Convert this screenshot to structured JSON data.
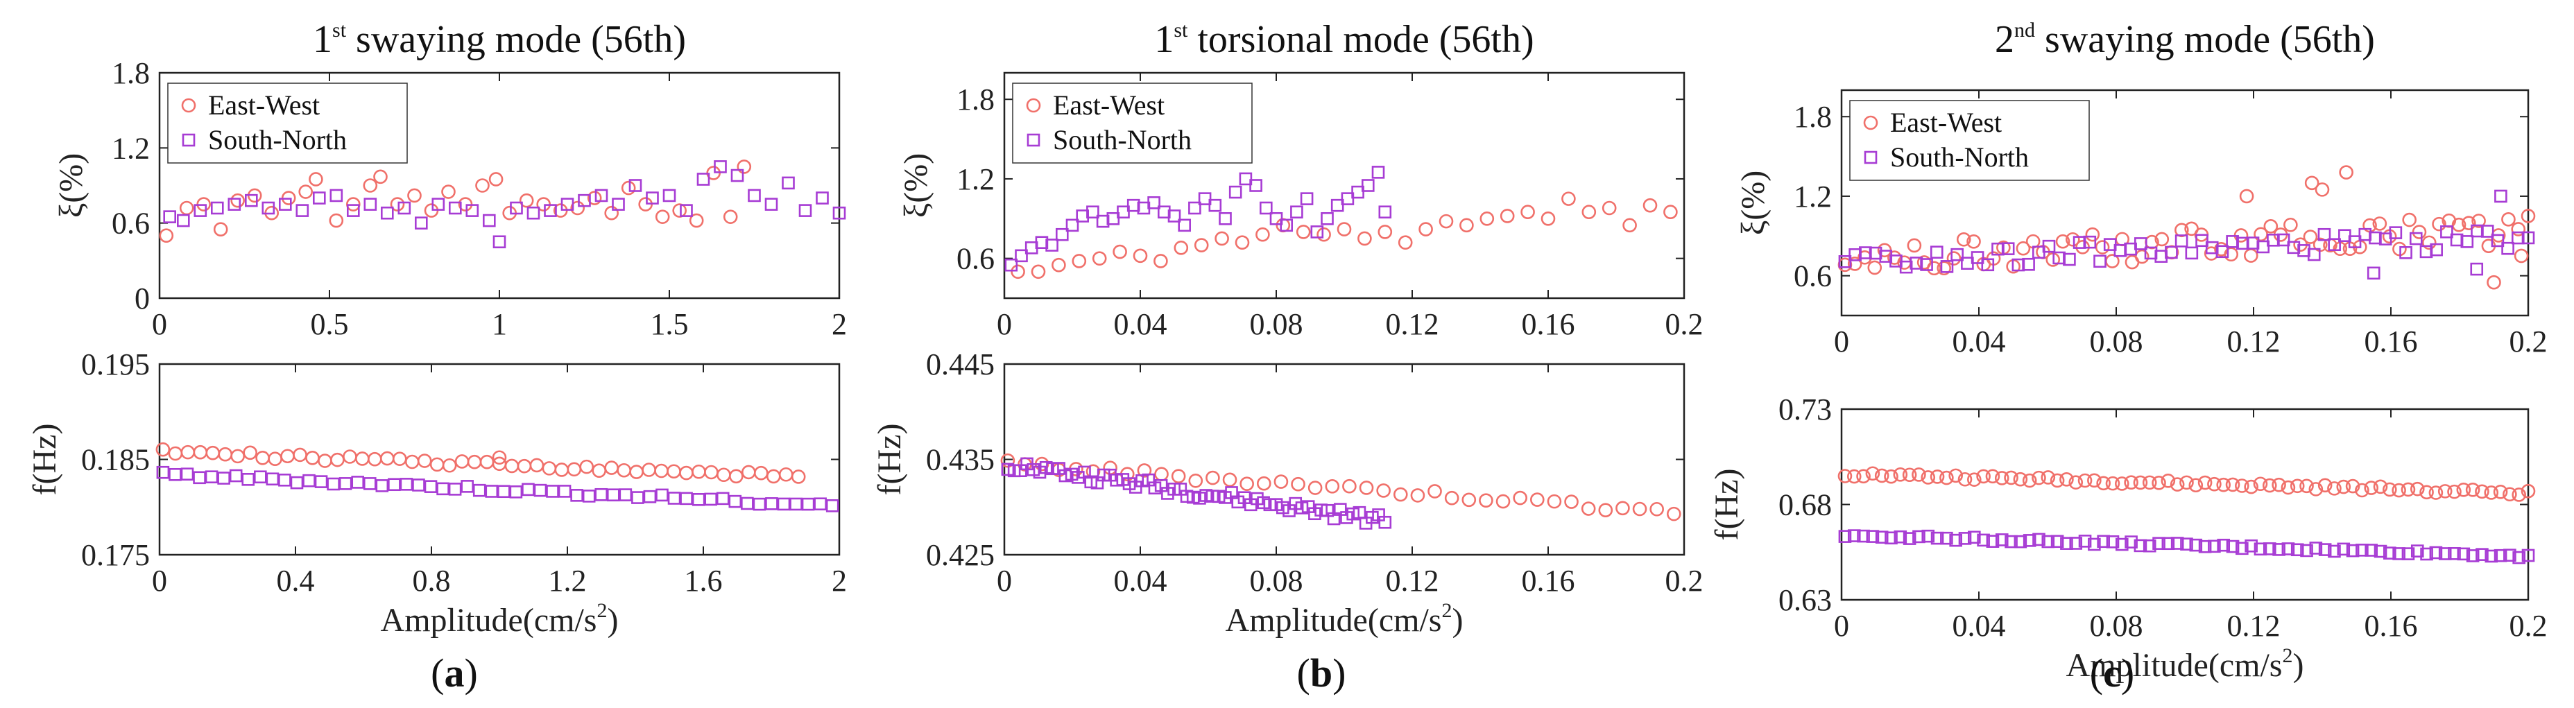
{
  "colors": {
    "east_west": "#F0706A",
    "south_north": "#A73CD4",
    "axis": "#222222"
  },
  "chart_data": [
    {
      "id": "a",
      "panel_label": "a",
      "title": {
        "sup": "st",
        "prefix": "1",
        "main": " swaying mode (56th)"
      },
      "legend": [
        "East-West",
        "South-North"
      ],
      "top": {
        "type": "scatter",
        "ylabel": "ξ(%)",
        "xlim": [
          0,
          2
        ],
        "ylim": [
          0,
          1.8
        ],
        "xticks": [
          0,
          0.5,
          1,
          1.5,
          2
        ],
        "xtick_labels": [
          "0",
          "0.5",
          "1",
          "1.5",
          "2"
        ],
        "yticks": [
          0,
          0.6,
          1.2,
          1.8
        ],
        "ytick_labels": [
          "0",
          "0.6",
          "1.2",
          "1.8"
        ],
        "series": [
          {
            "name": "East-West",
            "x": [
              0.02,
              0.08,
              0.13,
              0.18,
              0.23,
              0.28,
              0.33,
              0.38,
              0.43,
              0.46,
              0.52,
              0.57,
              0.62,
              0.65,
              0.7,
              0.75,
              0.8,
              0.85,
              0.9,
              0.95,
              0.99,
              1.03,
              1.08,
              1.13,
              1.18,
              1.23,
              1.28,
              1.33,
              1.38,
              1.43,
              1.48,
              1.53,
              1.58,
              1.63,
              1.68,
              1.72
            ],
            "y": [
              0.5,
              0.72,
              0.75,
              0.55,
              0.78,
              0.82,
              0.68,
              0.8,
              0.85,
              0.95,
              0.62,
              0.75,
              0.9,
              0.97,
              0.75,
              0.82,
              0.7,
              0.85,
              0.75,
              0.9,
              0.95,
              0.68,
              0.78,
              0.75,
              0.7,
              0.72,
              0.8,
              0.68,
              0.88,
              0.75,
              0.65,
              0.7,
              0.62,
              1.0,
              0.65,
              1.05
            ]
          },
          {
            "name": "South-North",
            "x": [
              0.03,
              0.07,
              0.12,
              0.17,
              0.22,
              0.27,
              0.32,
              0.37,
              0.42,
              0.47,
              0.52,
              0.57,
              0.62,
              0.67,
              0.72,
              0.77,
              0.82,
              0.87,
              0.92,
              0.97,
              1.0,
              1.05,
              1.1,
              1.15,
              1.2,
              1.25,
              1.3,
              1.35,
              1.4,
              1.45,
              1.5,
              1.55,
              1.6,
              1.65,
              1.7,
              1.75,
              1.8,
              1.85,
              1.9,
              1.95,
              2.0
            ],
            "y": [
              0.65,
              0.62,
              0.7,
              0.72,
              0.75,
              0.78,
              0.72,
              0.75,
              0.7,
              0.8,
              0.82,
              0.7,
              0.75,
              0.68,
              0.72,
              0.6,
              0.75,
              0.72,
              0.7,
              0.62,
              0.45,
              0.72,
              0.68,
              0.7,
              0.75,
              0.78,
              0.82,
              0.75,
              0.9,
              0.8,
              0.82,
              0.7,
              0.95,
              1.05,
              0.98,
              0.82,
              0.75,
              0.92,
              0.7,
              0.8,
              0.68
            ]
          }
        ]
      },
      "bottom": {
        "type": "scatter",
        "ylabel": "f(Hz)",
        "xlabel": {
          "main": "Amplitude(cm/s",
          "sup": "2",
          "end": ")"
        },
        "xlim": [
          0,
          2
        ],
        "ylim": [
          0.175,
          0.195
        ],
        "xticks": [
          0,
          0.4,
          0.8,
          1.2,
          1.6,
          2
        ],
        "xtick_labels": [
          "0",
          "0.4",
          "0.8",
          "1.2",
          "1.6",
          "2"
        ],
        "yticks": [
          0.175,
          0.185,
          0.195
        ],
        "ytick_labels": [
          "0.175",
          "0.185",
          "0.195"
        ],
        "series": [
          {
            "name": "East-West",
            "gen": {
              "n": 52,
              "x0": 0.01,
              "x1": 1.88,
              "y0": 0.1858,
              "y1": 0.1832,
              "noise": 0.0003,
              "extra": [
                [
                  1.0,
                  0.1852
                ]
              ]
            }
          },
          {
            "name": "South-North",
            "gen": {
              "n": 56,
              "x0": 0.01,
              "x1": 1.98,
              "y0": 0.1834,
              "y1": 0.1802,
              "noise": 0.00025
            }
          }
        ]
      }
    },
    {
      "id": "b",
      "panel_label": "b",
      "title": {
        "sup": "st",
        "prefix": "1",
        "main": " torsional mode (56th)"
      },
      "legend": [
        "East-West",
        "South-North"
      ],
      "top": {
        "type": "scatter",
        "ylabel": "ξ(%)",
        "xlim": [
          0,
          0.2
        ],
        "ylim": [
          0.3,
          2.0
        ],
        "xticks": [
          0,
          0.04,
          0.08,
          0.12,
          0.16,
          0.2
        ],
        "xtick_labels": [
          "0",
          "0.04",
          "0.08",
          "0.12",
          "0.16",
          "0.2"
        ],
        "yticks": [
          0.6,
          1.2,
          1.8
        ],
        "ytick_labels": [
          "0.6",
          "1.2",
          "1.8"
        ],
        "series": [
          {
            "name": "East-West",
            "x": [
              0.004,
              0.01,
              0.016,
              0.022,
              0.028,
              0.034,
              0.04,
              0.046,
              0.052,
              0.058,
              0.064,
              0.07,
              0.076,
              0.082,
              0.088,
              0.094,
              0.1,
              0.106,
              0.112,
              0.118,
              0.124,
              0.13,
              0.136,
              0.142,
              0.148,
              0.154,
              0.16,
              0.166,
              0.172,
              0.178,
              0.184,
              0.19,
              0.196
            ],
            "y": [
              0.5,
              0.5,
              0.55,
              0.58,
              0.6,
              0.65,
              0.62,
              0.58,
              0.68,
              0.7,
              0.75,
              0.72,
              0.78,
              0.85,
              0.8,
              0.78,
              0.82,
              0.75,
              0.8,
              0.72,
              0.82,
              0.88,
              0.85,
              0.9,
              0.92,
              0.95,
              0.9,
              1.05,
              0.95,
              0.98,
              0.85,
              1.0,
              0.95
            ]
          },
          {
            "name": "South-North",
            "x": [
              0.002,
              0.005,
              0.008,
              0.011,
              0.014,
              0.017,
              0.02,
              0.023,
              0.026,
              0.029,
              0.032,
              0.035,
              0.038,
              0.041,
              0.044,
              0.047,
              0.05,
              0.053,
              0.056,
              0.059,
              0.062,
              0.065,
              0.068,
              0.071,
              0.074,
              0.077,
              0.08,
              0.083,
              0.086,
              0.089,
              0.092,
              0.095,
              0.098,
              0.101,
              0.104,
              0.107,
              0.11,
              0.112
            ],
            "y": [
              0.55,
              0.62,
              0.68,
              0.72,
              0.7,
              0.78,
              0.85,
              0.92,
              0.95,
              0.88,
              0.9,
              0.95,
              1.0,
              0.98,
              1.02,
              0.95,
              0.92,
              0.85,
              0.98,
              1.05,
              1.0,
              0.9,
              1.1,
              1.2,
              1.15,
              0.98,
              0.9,
              0.85,
              0.95,
              1.05,
              0.8,
              0.9,
              1.0,
              1.05,
              1.1,
              1.15,
              1.25,
              0.95
            ]
          }
        ]
      },
      "bottom": {
        "type": "scatter",
        "ylabel": "f(Hz)",
        "xlabel": {
          "main": "Amplitude(cm/s",
          "sup": "2",
          "end": ")"
        },
        "xlim": [
          0,
          0.2
        ],
        "ylim": [
          0.425,
          0.445
        ],
        "xticks": [
          0,
          0.04,
          0.08,
          0.12,
          0.16,
          0.2
        ],
        "xtick_labels": [
          "0",
          "0.04",
          "0.08",
          "0.12",
          "0.16",
          "0.2"
        ],
        "yticks": [
          0.425,
          0.435,
          0.445
        ],
        "ytick_labels": [
          "0.425",
          "0.435",
          "0.445"
        ],
        "series": [
          {
            "name": "East-West",
            "gen": {
              "n": 40,
              "x0": 0.001,
              "x1": 0.197,
              "y0": 0.4345,
              "y1": 0.4295,
              "noise": 0.0004
            }
          },
          {
            "name": "South-North",
            "gen": {
              "n": 60,
              "x0": 0.001,
              "x1": 0.112,
              "y0": 0.4345,
              "y1": 0.4285,
              "noise": 0.0006
            }
          }
        ]
      }
    },
    {
      "id": "c",
      "panel_label": "c",
      "title": {
        "sup": "nd",
        "prefix": "2",
        "main": " swaying mode (56th)"
      },
      "legend": [
        "East-West",
        "South-North"
      ],
      "top": {
        "type": "scatter",
        "ylabel": "ξ(%)",
        "xlim": [
          0,
          0.2
        ],
        "ylim": [
          0.3,
          2.0
        ],
        "xticks": [
          0,
          0.04,
          0.08,
          0.12,
          0.16,
          0.2
        ],
        "xtick_labels": [
          "0",
          "0.04",
          "0.08",
          "0.12",
          "0.16",
          "0.2"
        ],
        "yticks": [
          0.6,
          1.2,
          1.8
        ],
        "ytick_labels": [
          "0.6",
          "1.2",
          "1.8"
        ],
        "series": [
          {
            "name": "East-West",
            "gen": {
              "n": 70,
              "x0": 0.001,
              "x1": 0.2,
              "y0": 0.72,
              "y1": 0.95,
              "noise": 0.12,
              "extra": [
                [
                  0.137,
                  1.3
                ],
                [
                  0.14,
                  1.25
                ],
                [
                  0.147,
                  1.38
                ],
                [
                  0.118,
                  1.2
                ],
                [
                  0.19,
                  0.55
                ],
                [
                  0.198,
                  0.75
                ]
              ]
            }
          },
          {
            "name": "South-North",
            "gen": {
              "n": 68,
              "x0": 0.001,
              "x1": 0.2,
              "y0": 0.72,
              "y1": 0.88,
              "noise": 0.08,
              "extra": [
                [
                  0.192,
                  1.2
                ],
                [
                  0.185,
                  0.65
                ],
                [
                  0.155,
                  0.62
                ]
              ]
            }
          }
        ]
      },
      "bottom": {
        "type": "scatter",
        "ylabel": "f(Hz)",
        "xlabel": {
          "main": "Amplitude(cm/s",
          "sup": "2",
          "end": ")"
        },
        "xlim": [
          0,
          0.2
        ],
        "ylim": [
          0.63,
          0.73
        ],
        "xticks": [
          0,
          0.04,
          0.08,
          0.12,
          0.16,
          0.2
        ],
        "xtick_labels": [
          "0",
          "0.04",
          "0.08",
          "0.12",
          "0.16",
          "0.2"
        ],
        "yticks": [
          0.63,
          0.68,
          0.73
        ],
        "ytick_labels": [
          "0.63",
          "0.68",
          "0.73"
        ],
        "series": [
          {
            "name": "East-West",
            "gen": {
              "n": 75,
              "x0": 0.001,
              "x1": 0.2,
              "y0": 0.696,
              "y1": 0.686,
              "noise": 0.0012
            }
          },
          {
            "name": "South-North",
            "gen": {
              "n": 75,
              "x0": 0.001,
              "x1": 0.2,
              "y0": 0.664,
              "y1": 0.653,
              "noise": 0.001
            }
          }
        ]
      }
    }
  ]
}
